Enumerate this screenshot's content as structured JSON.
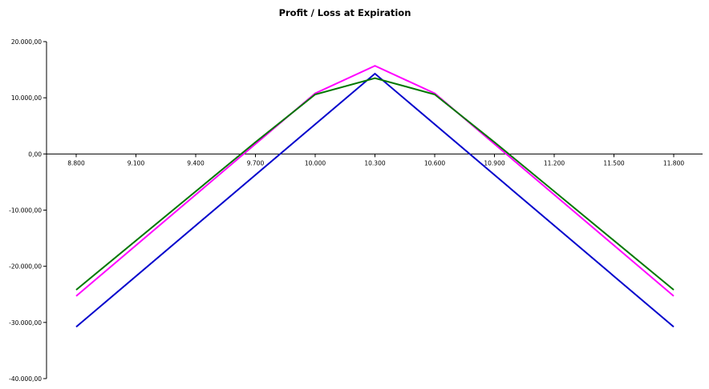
{
  "chart_data": {
    "type": "line",
    "title": "Profit / Loss at Expiration",
    "xlabel": "",
    "ylabel": "",
    "x": [
      8800,
      9100,
      9400,
      9700,
      10000,
      10300,
      10600,
      10900,
      11200,
      11500,
      11800
    ],
    "x_tick_labels": [
      "8.800",
      "9.100",
      "9.400",
      "9.700",
      "10.000",
      "10.300",
      "10.600",
      "10.900",
      "11.200",
      "11.500",
      "11.800"
    ],
    "y_tick_labels": [
      "20.000,00",
      "10.000,00",
      "0,00",
      "-10.000,00",
      "-20.000,00",
      "-30.000,00",
      "-40.000,00"
    ],
    "y_ticks": [
      20000,
      10000,
      0,
      -10000,
      -20000,
      -30000,
      -40000
    ],
    "ylim": [
      -40000,
      20000
    ],
    "xlim": [
      8800,
      11800
    ],
    "grid": false,
    "legend": "none",
    "series": [
      {
        "color": "#0000cc",
        "points": [
          [
            8800,
            -30800
          ],
          [
            10300,
            14300
          ],
          [
            11800,
            -30800
          ]
        ]
      },
      {
        "color": "#ff00ff",
        "points": [
          [
            8800,
            -25300
          ],
          [
            10000,
            10800
          ],
          [
            10300,
            15700
          ],
          [
            10600,
            10800
          ],
          [
            11800,
            -25300
          ]
        ]
      },
      {
        "color": "#007700",
        "points": [
          [
            8800,
            -24200
          ],
          [
            9700,
            2100
          ],
          [
            10000,
            10600
          ],
          [
            10300,
            13500
          ],
          [
            10600,
            10600
          ],
          [
            10900,
            2100
          ],
          [
            11800,
            -24200
          ]
        ]
      }
    ]
  }
}
